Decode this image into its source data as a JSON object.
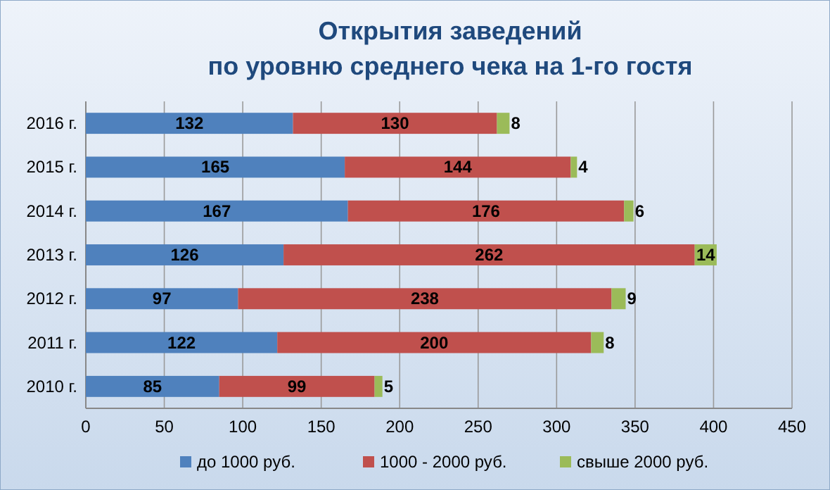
{
  "chart_data": {
    "type": "bar",
    "orientation": "horizontal",
    "stacked": true,
    "title": "Открытия заведений\nпо уровню среднего чека на 1-го гостя",
    "categories": [
      "2016 г.",
      "2015 г.",
      "2014 г.",
      "2013 г.",
      "2012 г.",
      "2011 г.",
      "2010 г."
    ],
    "series": [
      {
        "name": "до 1000 руб.",
        "color": "#4f81bd",
        "values": [
          132,
          165,
          167,
          126,
          97,
          122,
          85
        ]
      },
      {
        "name": "1000 - 2000 руб.",
        "color": "#c0504d",
        "values": [
          130,
          144,
          176,
          262,
          238,
          200,
          99
        ]
      },
      {
        "name": "свыше 2000 руб.",
        "color": "#9bbb59",
        "values": [
          8,
          4,
          6,
          14,
          9,
          8,
          5
        ]
      }
    ],
    "xlim": [
      0,
      450
    ],
    "xticks": [
      0,
      50,
      100,
      150,
      200,
      250,
      300,
      350,
      400,
      450
    ],
    "grid": "x",
    "legend": "bottom",
    "data_labels": true
  }
}
